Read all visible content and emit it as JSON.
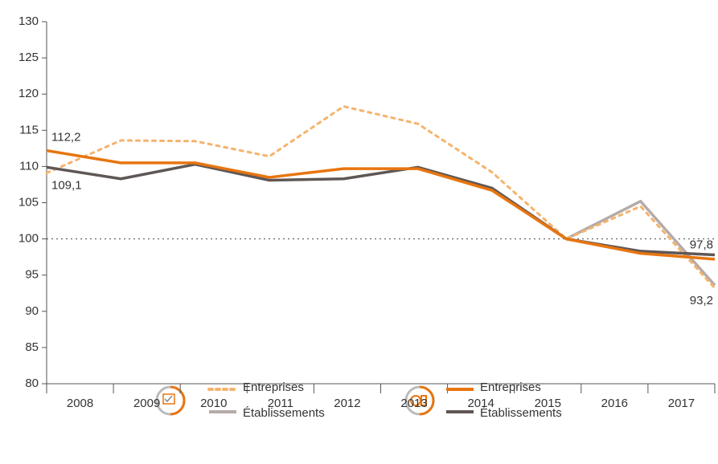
{
  "chart_data": {
    "type": "line",
    "categories": [
      "2008",
      "2009",
      "2010",
      "2011",
      "2012",
      "2013",
      "2014",
      "2015",
      "2016",
      "2017"
    ],
    "series": [
      {
        "name": "Entreprises",
        "color": "#f5b36c",
        "dash": true,
        "values": [
          109.1,
          113.6,
          113.5,
          111.4,
          118.3,
          115.9,
          109.2,
          100,
          104.5,
          93.2
        ],
        "value_labels": [
          "109,1",
          null,
          null,
          null,
          null,
          null,
          null,
          null,
          null,
          "93,2"
        ]
      },
      {
        "name": "Établissements",
        "color": "#b5aba8",
        "values": [
          null,
          null,
          null,
          null,
          null,
          null,
          null,
          100,
          105.2,
          93.6
        ]
      },
      {
        "name": "Entreprises",
        "color": "#e8750f",
        "values": [
          112.2,
          110.5,
          110.5,
          108.5,
          109.7,
          109.7,
          106.7,
          100,
          98,
          97.2
        ],
        "value_labels": [
          "112,2",
          null,
          null,
          null,
          null,
          null,
          null,
          null,
          null,
          null
        ]
      },
      {
        "name": "Établissements",
        "color": "#5f5755",
        "values": [
          109.9,
          108.3,
          110.3,
          108.1,
          108.3,
          109.9,
          107,
          100,
          98.3,
          97.8
        ],
        "value_labels": [
          null,
          null,
          null,
          null,
          null,
          null,
          null,
          null,
          null,
          "97,8"
        ]
      }
    ],
    "ylim": [
      80,
      130
    ],
    "yticks": [
      80,
      85,
      90,
      95,
      100,
      105,
      110,
      115,
      120,
      125,
      130
    ],
    "reference_line": 100
  }
}
